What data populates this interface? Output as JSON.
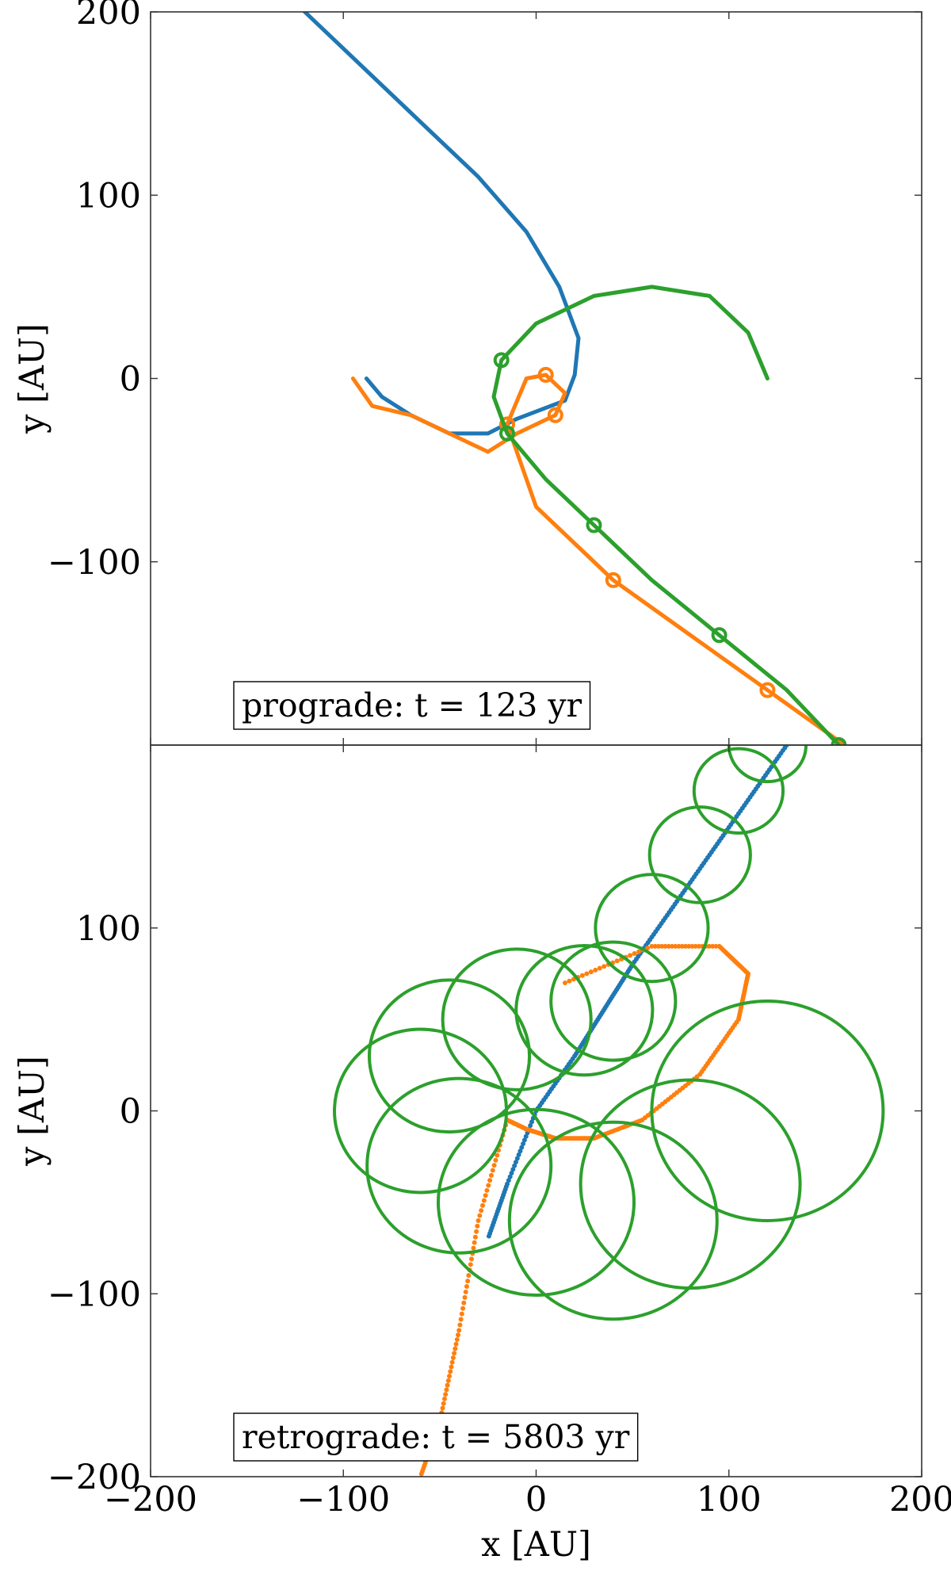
{
  "chart_data": [
    {
      "type": "line",
      "panel": "top",
      "annotation": "prograde: t = 123 yr",
      "xlabel": "x [AU]",
      "ylabel": "y [AU]",
      "xlim": [
        -200,
        200
      ],
      "ylim": [
        -200,
        200
      ],
      "xticks": [
        -200,
        -100,
        0,
        100,
        200
      ],
      "yticks": [
        -100,
        0,
        100,
        200
      ],
      "ytick_labels": [
        "−100",
        "0",
        "100",
        "200"
      ],
      "grid": false,
      "colors": {
        "blue": "#1f77b4",
        "orange": "#ff7f0e",
        "green": "#2ca02c"
      },
      "series": [
        {
          "color": "#1f77b4",
          "style": "line",
          "points": [
            [
              -120,
              200
            ],
            [
              -90,
              170
            ],
            [
              -60,
              140
            ],
            [
              -30,
              110
            ],
            [
              -5,
              80
            ],
            [
              12,
              50
            ],
            [
              22,
              22
            ],
            [
              20,
              2
            ],
            [
              15,
              -12
            ],
            [
              -10,
              -22
            ],
            [
              -25,
              -30
            ],
            [
              -45,
              -30
            ],
            [
              -65,
              -20
            ],
            [
              -80,
              -10
            ],
            [
              -88,
              0
            ]
          ]
        },
        {
          "color": "#ff7f0e",
          "style": "line",
          "points": [
            [
              -95,
              0
            ],
            [
              -85,
              -15
            ],
            [
              -65,
              -20
            ],
            [
              -45,
              -30
            ],
            [
              -25,
              -40
            ],
            [
              -10,
              -30
            ],
            [
              10,
              -20
            ],
            [
              15,
              -8
            ],
            [
              5,
              2
            ],
            [
              -5,
              0
            ],
            [
              -15,
              -25
            ],
            [
              0,
              -70
            ],
            [
              40,
              -110
            ],
            [
              80,
              -140
            ],
            [
              120,
              -170
            ],
            [
              160,
              -200
            ]
          ]
        },
        {
          "color": "#2ca02c",
          "style": "line",
          "points": [
            [
              120,
              0
            ],
            [
              110,
              25
            ],
            [
              90,
              45
            ],
            [
              60,
              50
            ],
            [
              30,
              45
            ],
            [
              0,
              30
            ],
            [
              -18,
              10
            ],
            [
              -22,
              -10
            ],
            [
              -15,
              -30
            ],
            [
              5,
              -55
            ],
            [
              30,
              -80
            ],
            [
              60,
              -110
            ],
            [
              95,
              -140
            ],
            [
              130,
              -170
            ],
            [
              157,
              -200
            ]
          ]
        }
      ]
    },
    {
      "type": "scatter",
      "panel": "bottom",
      "annotation": "retrograde: t = 5803 yr",
      "xlabel": "x [AU]",
      "ylabel": "y [AU]",
      "xlim": [
        -200,
        200
      ],
      "ylim": [
        -200,
        200
      ],
      "xticks": [
        -200,
        -100,
        0,
        100,
        200
      ],
      "xtick_labels": [
        "−200",
        "−100",
        "0",
        "100",
        "200"
      ],
      "yticks": [
        -200,
        -100,
        0,
        100
      ],
      "ytick_labels": [
        "−200",
        "−100",
        "0",
        "100"
      ],
      "grid": false,
      "colors": {
        "blue": "#1f77b4",
        "orange": "#ff7f0e",
        "green": "#2ca02c"
      },
      "series": [
        {
          "color": "#1f77b4",
          "style": "dots",
          "points": [
            [
              130,
              200
            ],
            [
              110,
              170
            ],
            [
              90,
              140
            ],
            [
              70,
              110
            ],
            [
              50,
              80
            ],
            [
              35,
              55
            ],
            [
              20,
              30
            ],
            [
              0,
              0
            ],
            [
              -15,
              -40
            ],
            [
              -25,
              -70
            ]
          ]
        },
        {
          "color": "#ff7f0e",
          "style": "dots",
          "points": [
            [
              15,
              70
            ],
            [
              60,
              90
            ],
            [
              95,
              90
            ],
            [
              110,
              75
            ],
            [
              105,
              50
            ],
            [
              85,
              20
            ],
            [
              55,
              -5
            ],
            [
              30,
              -15
            ],
            [
              10,
              -15
            ],
            [
              -5,
              -10
            ],
            [
              -15,
              -5
            ],
            [
              -30,
              -60
            ],
            [
              -40,
              -120
            ],
            [
              -50,
              -170
            ],
            [
              -60,
              -200
            ]
          ]
        },
        {
          "color": "#2ca02c",
          "style": "line",
          "center_path": [
            [
              120,
              0
            ],
            [
              80,
              -40
            ],
            [
              40,
              -60
            ],
            [
              0,
              -50
            ],
            [
              -40,
              -30
            ],
            [
              -60,
              0
            ],
            [
              -45,
              30
            ],
            [
              -10,
              50
            ],
            [
              25,
              55
            ],
            [
              40,
              60
            ],
            [
              60,
              100
            ],
            [
              85,
              140
            ],
            [
              105,
              175
            ],
            [
              120,
              200
            ]
          ],
          "loop_radius_range": [
            20,
            60
          ]
        }
      ]
    }
  ]
}
